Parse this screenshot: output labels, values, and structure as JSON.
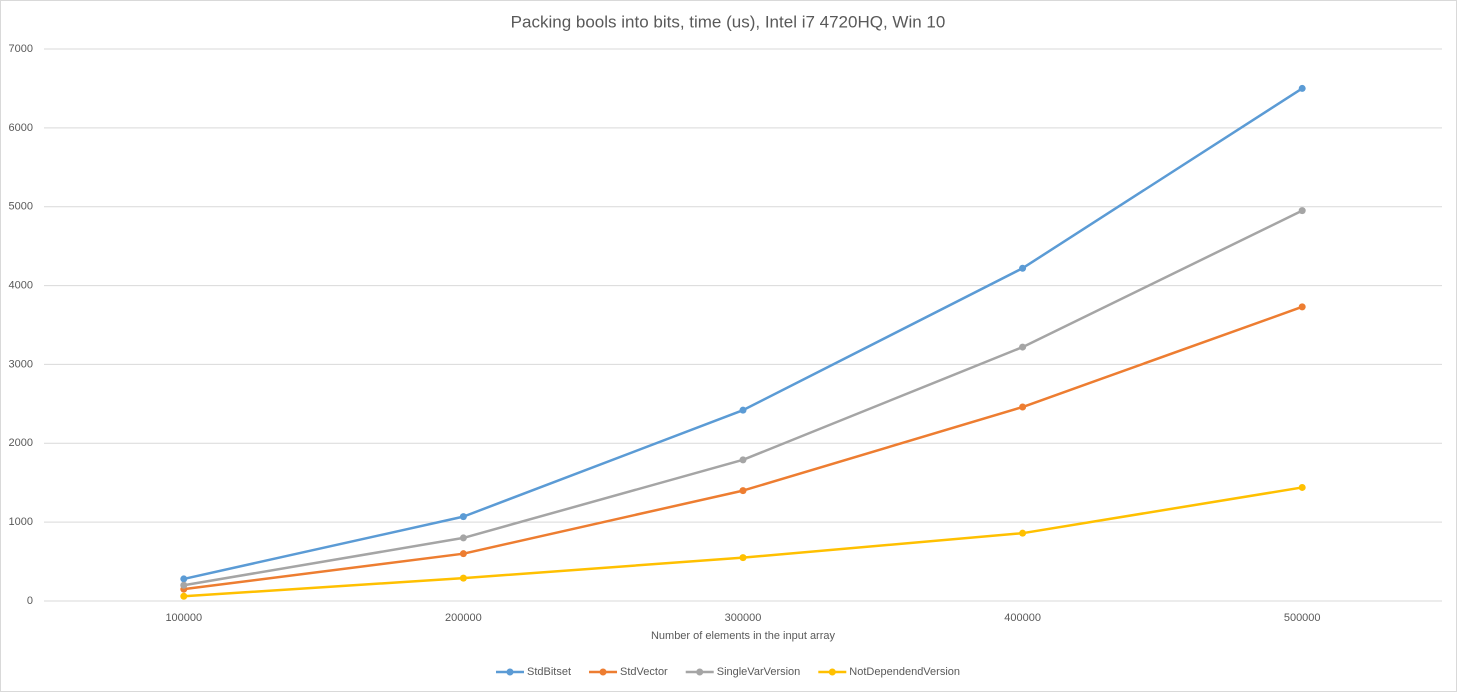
{
  "chart_data": {
    "type": "line",
    "title": "Packing bools into bits, time (us), Intel i7 4720HQ, Win 10",
    "x_label": "Number of elements in the input array",
    "categories": [
      "100000",
      "200000",
      "300000",
      "400000",
      "500000"
    ],
    "series": [
      {
        "name": "StdBitset",
        "color": "#5b9bd5",
        "values": [
          280,
          1070,
          2420,
          4220,
          6500
        ]
      },
      {
        "name": "StdVector",
        "color": "#ed7d31",
        "values": [
          150,
          600,
          1400,
          2460,
          3730
        ]
      },
      {
        "name": "SingleVarVersion",
        "color": "#a5a5a5",
        "values": [
          200,
          800,
          1790,
          3220,
          4950
        ]
      },
      {
        "name": "NotDependendVersion",
        "color": "#ffc000",
        "values": [
          60,
          290,
          550,
          860,
          1440
        ]
      }
    ],
    "ylim": [
      0,
      7000
    ],
    "yticks": [
      0,
      1000,
      2000,
      3000,
      4000,
      5000,
      6000,
      7000
    ],
    "grid": true,
    "legend": "bottom"
  }
}
